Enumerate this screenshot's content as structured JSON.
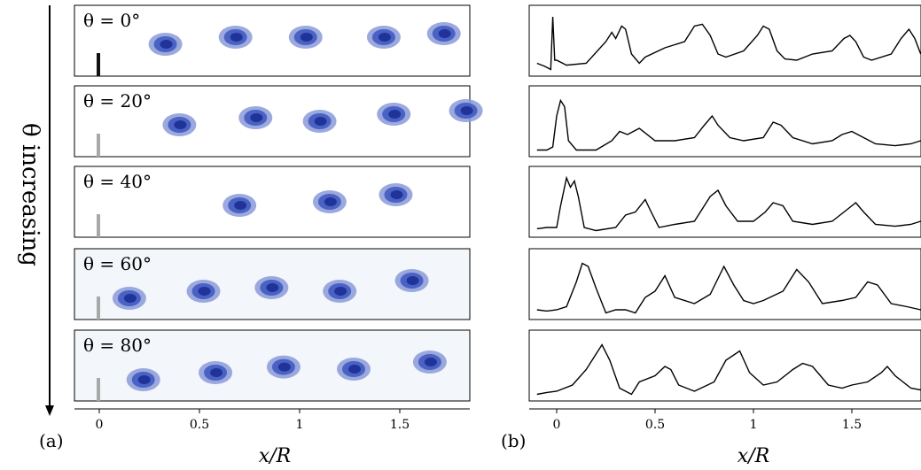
{
  "figure": {
    "side_label": "θ increasing",
    "panel_a_label": "(a)",
    "panel_b_label": "(b)",
    "xlabel_a": "x/R",
    "xlabel_b": "x/R",
    "ticks_a": [
      "0",
      "0.5",
      "1",
      "1.5"
    ],
    "ticks_b": [
      "0",
      "0.5",
      "1",
      "1.5"
    ],
    "colors": {
      "vortex_outer": "#8a9ad8",
      "vortex_mid": "#4a62c4",
      "vortex_core": "#1f3399",
      "blade": "#a8a8a8",
      "blade_dark": "#111111",
      "curve": "#000000"
    }
  },
  "panels": [
    {
      "angle_label": "θ = 0°",
      "field_bg": "#ffffff"
    },
    {
      "angle_label": "θ = 20°",
      "field_bg": "#ffffff"
    },
    {
      "angle_label": "θ = 40°",
      "field_bg": "#ffffff"
    },
    {
      "angle_label": "θ = 60°",
      "field_bg": "#f3f6fa"
    },
    {
      "angle_label": "θ = 80°",
      "field_bg": "#f3f6fa"
    }
  ],
  "chart_data": {
    "type": "line",
    "xlabel": "x/R",
    "xlim": [
      -0.1,
      1.85
    ],
    "xticks": [
      0,
      0.5,
      1,
      1.5
    ],
    "series": [
      {
        "x": [
          -0.1,
          -0.06,
          -0.03,
          -0.02,
          -0.01,
          0.0,
          0.05,
          0.15,
          0.25,
          0.28,
          0.3,
          0.33,
          0.35,
          0.38,
          0.42,
          0.45,
          0.55,
          0.65,
          0.7,
          0.74,
          0.78,
          0.82,
          0.86,
          0.95,
          1.02,
          1.05,
          1.08,
          1.12,
          1.16,
          1.22,
          1.3,
          1.4,
          1.46,
          1.49,
          1.52,
          1.56,
          1.6,
          1.7,
          1.75,
          1.79,
          1.82,
          1.85
        ],
        "y": [
          0.15,
          0.1,
          0.05,
          0.9,
          0.2,
          0.2,
          0.12,
          0.15,
          0.5,
          0.65,
          0.55,
          0.75,
          0.7,
          0.3,
          0.15,
          0.25,
          0.4,
          0.5,
          0.75,
          0.78,
          0.6,
          0.3,
          0.25,
          0.35,
          0.6,
          0.75,
          0.7,
          0.35,
          0.22,
          0.2,
          0.3,
          0.35,
          0.55,
          0.6,
          0.5,
          0.25,
          0.2,
          0.3,
          0.55,
          0.7,
          0.55,
          0.3
        ]
      },
      {
        "x": [
          -0.1,
          -0.05,
          -0.02,
          0.0,
          0.02,
          0.04,
          0.06,
          0.1,
          0.2,
          0.28,
          0.32,
          0.36,
          0.42,
          0.5,
          0.6,
          0.7,
          0.75,
          0.79,
          0.82,
          0.88,
          0.95,
          1.05,
          1.1,
          1.14,
          1.2,
          1.3,
          1.4,
          1.45,
          1.5,
          1.56,
          1.62,
          1.72,
          1.8,
          1.85
        ],
        "y": [
          0.05,
          0.05,
          0.1,
          0.6,
          0.85,
          0.75,
          0.2,
          0.05,
          0.05,
          0.2,
          0.35,
          0.3,
          0.4,
          0.2,
          0.2,
          0.25,
          0.45,
          0.6,
          0.45,
          0.25,
          0.2,
          0.25,
          0.5,
          0.45,
          0.25,
          0.15,
          0.2,
          0.3,
          0.35,
          0.25,
          0.15,
          0.12,
          0.15,
          0.2
        ]
      },
      {
        "x": [
          -0.1,
          -0.05,
          0.0,
          0.02,
          0.05,
          0.07,
          0.09,
          0.11,
          0.14,
          0.2,
          0.3,
          0.35,
          0.4,
          0.45,
          0.48,
          0.52,
          0.6,
          0.7,
          0.78,
          0.82,
          0.86,
          0.92,
          1.0,
          1.06,
          1.1,
          1.15,
          1.2,
          1.3,
          1.4,
          1.48,
          1.52,
          1.56,
          1.62,
          1.72,
          1.8,
          1.85
        ],
        "y": [
          0.08,
          0.1,
          0.1,
          0.45,
          0.9,
          0.75,
          0.85,
          0.6,
          0.1,
          0.05,
          0.1,
          0.3,
          0.35,
          0.55,
          0.35,
          0.1,
          0.15,
          0.2,
          0.6,
          0.7,
          0.45,
          0.2,
          0.2,
          0.35,
          0.5,
          0.45,
          0.2,
          0.15,
          0.2,
          0.4,
          0.5,
          0.35,
          0.15,
          0.12,
          0.15,
          0.2
        ]
      },
      {
        "x": [
          -0.1,
          -0.05,
          0.0,
          0.05,
          0.1,
          0.13,
          0.16,
          0.2,
          0.25,
          0.3,
          0.35,
          0.4,
          0.45,
          0.5,
          0.55,
          0.6,
          0.7,
          0.78,
          0.85,
          0.9,
          0.95,
          1.0,
          1.05,
          1.15,
          1.22,
          1.28,
          1.35,
          1.45,
          1.52,
          1.58,
          1.63,
          1.7,
          1.78,
          1.85
        ],
        "y": [
          0.1,
          0.08,
          0.1,
          0.15,
          0.55,
          0.85,
          0.8,
          0.45,
          0.05,
          0.1,
          0.1,
          0.05,
          0.3,
          0.4,
          0.65,
          0.3,
          0.2,
          0.35,
          0.8,
          0.5,
          0.25,
          0.2,
          0.25,
          0.4,
          0.75,
          0.55,
          0.2,
          0.25,
          0.3,
          0.55,
          0.5,
          0.2,
          0.15,
          0.1
        ]
      },
      {
        "x": [
          -0.1,
          -0.05,
          0.0,
          0.08,
          0.15,
          0.2,
          0.23,
          0.27,
          0.32,
          0.38,
          0.42,
          0.5,
          0.55,
          0.58,
          0.62,
          0.7,
          0.8,
          0.86,
          0.93,
          0.98,
          1.05,
          1.12,
          1.2,
          1.25,
          1.3,
          1.38,
          1.45,
          1.5,
          1.58,
          1.65,
          1.68,
          1.72,
          1.8,
          1.85
        ],
        "y": [
          0.05,
          0.08,
          0.1,
          0.2,
          0.45,
          0.7,
          0.85,
          0.6,
          0.15,
          0.05,
          0.25,
          0.35,
          0.5,
          0.45,
          0.2,
          0.1,
          0.25,
          0.6,
          0.75,
          0.4,
          0.2,
          0.25,
          0.45,
          0.55,
          0.5,
          0.2,
          0.15,
          0.2,
          0.25,
          0.4,
          0.5,
          0.35,
          0.15,
          0.12
        ]
      }
    ]
  }
}
